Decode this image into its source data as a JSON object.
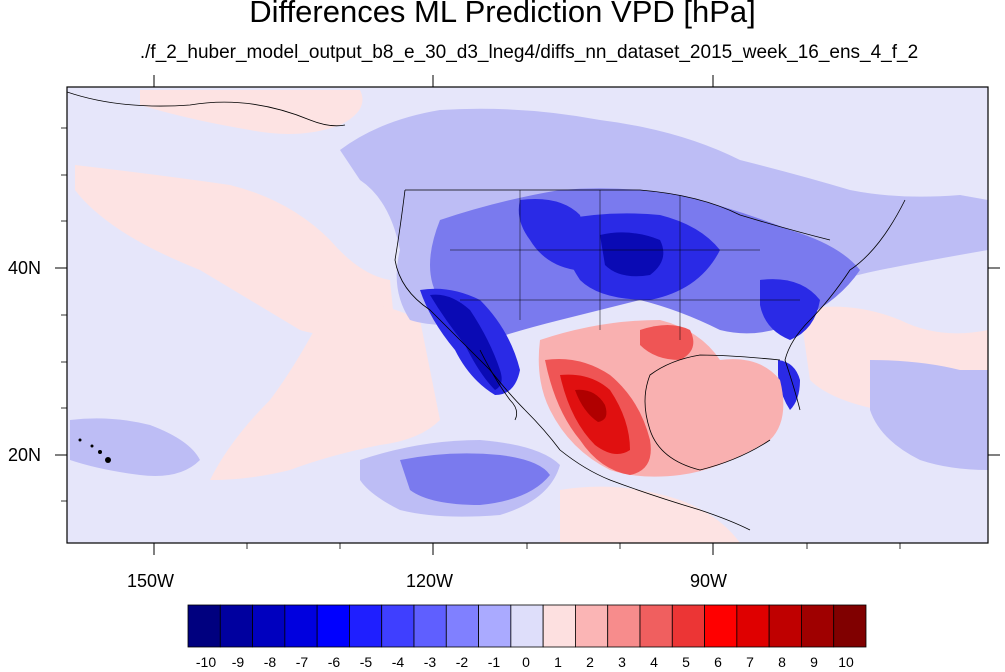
{
  "title": "Differences ML Prediction VPD [hPa]",
  "subtitle": "./f_2_huber_model_output_b8_e_30_d3_lneg4/diffs_nn_dataset_2015_week_16_ens_4_f_2",
  "x_ticks": [
    "150W",
    "120W",
    "90W"
  ],
  "y_ticks": [
    "40N",
    "20N"
  ],
  "colorbar": {
    "labels": [
      "-10",
      "-9",
      "-8",
      "-7",
      "-6",
      "-5",
      "-4",
      "-3",
      "-2",
      "-1",
      "0",
      "1",
      "2",
      "3",
      "4",
      "5",
      "6",
      "7",
      "8",
      "9",
      "10"
    ],
    "colors": [
      "#00007f",
      "#00009f",
      "#0000bf",
      "#0000df",
      "#0000ff",
      "#1f1fff",
      "#3f3fff",
      "#5f5fff",
      "#8080ff",
      "#aaaaff",
      "#dedefa",
      "#fde0e0",
      "#fbb5b5",
      "#f78c8c",
      "#f05f5f",
      "#ec3535",
      "#ff0000",
      "#df0000",
      "#bf0000",
      "#9f0000",
      "#800000"
    ]
  },
  "field_colors": {
    "background": "#e6e6fa",
    "light_pink": "#fde3e3",
    "light_blue": "#bdbdf5",
    "mid_blue": "#7a7aee",
    "deep_blue": "#2a2ae6",
    "darkest_blue": "#0a0ab4",
    "pink": "#f9b0b0",
    "red": "#ef5555",
    "deep_red": "#e01010",
    "darkest_red": "#b00000"
  }
}
